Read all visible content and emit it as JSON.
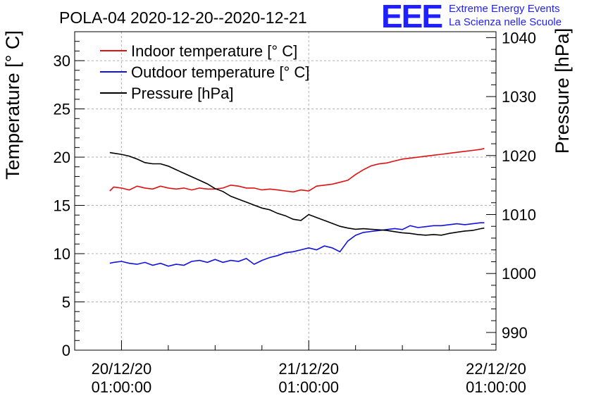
{
  "chart_data": {
    "type": "line",
    "title": "POLA-04 2020-12-20--2020-12-21",
    "ylabel_left": "Temperature [° C]",
    "ylabel_right": "Pressure [hPa]",
    "xlabel": "",
    "x_ticks": [
      {
        "date": "20/12/20",
        "time": "01:00:00",
        "hours": 0
      },
      {
        "date": "21/12/20",
        "time": "01:00:00",
        "hours": 24
      },
      {
        "date": "22/12/20",
        "time": "01:00:00",
        "hours": 48
      }
    ],
    "x_range_hours": [
      -6,
      48
    ],
    "ylim_left": [
      0,
      33
    ],
    "yticks_left": [
      0,
      5,
      10,
      15,
      20,
      25,
      30
    ],
    "ylim_right": [
      987,
      1041
    ],
    "yticks_right": [
      990,
      1000,
      1010,
      1020,
      1030,
      1040
    ],
    "grid": true,
    "legend_position": "top-left",
    "series": [
      {
        "name": "Indoor temperature [° C]",
        "axis": "left",
        "color": "#e01010",
        "x_hours": [
          -1.5,
          -1,
          0,
          1,
          2,
          3,
          4,
          5,
          6,
          7,
          8,
          9,
          10,
          11,
          12,
          13,
          14,
          15,
          16,
          17,
          18,
          19,
          20,
          21,
          22,
          23,
          24,
          25,
          26,
          27,
          28,
          29,
          30,
          31,
          32,
          33,
          34,
          35,
          36,
          37,
          38,
          39,
          40,
          41,
          42,
          43,
          44,
          45,
          46,
          46.5
        ],
        "values": [
          16.5,
          16.9,
          16.8,
          16.6,
          17.0,
          16.8,
          16.7,
          17.0,
          16.8,
          16.7,
          16.8,
          16.6,
          16.8,
          16.7,
          16.7,
          16.8,
          17.1,
          17.0,
          16.8,
          16.8,
          16.6,
          16.7,
          16.6,
          16.5,
          16.4,
          16.6,
          16.5,
          17.0,
          17.1,
          17.2,
          17.4,
          17.6,
          18.2,
          18.7,
          19.1,
          19.3,
          19.4,
          19.6,
          19.8,
          19.9,
          20.0,
          20.1,
          20.2,
          20.3,
          20.4,
          20.5,
          20.6,
          20.7,
          20.8,
          20.9
        ]
      },
      {
        "name": "Outdoor temperature [° C]",
        "axis": "left",
        "color": "#1010e0",
        "x_hours": [
          -1.5,
          -1,
          0,
          1,
          2,
          3,
          4,
          5,
          6,
          7,
          8,
          9,
          10,
          11,
          12,
          13,
          14,
          15,
          16,
          17,
          18,
          19,
          20,
          21,
          22,
          23,
          24,
          25,
          26,
          27,
          28,
          29,
          30,
          31,
          32,
          33,
          34,
          35,
          36,
          37,
          38,
          39,
          40,
          41,
          42,
          43,
          44,
          45,
          46,
          46.5
        ],
        "values": [
          9.0,
          9.1,
          9.2,
          9.0,
          8.9,
          9.1,
          8.8,
          9.0,
          8.7,
          8.9,
          8.8,
          9.2,
          9.3,
          9.1,
          9.4,
          9.1,
          9.3,
          9.2,
          9.5,
          8.9,
          9.3,
          9.6,
          9.8,
          10.1,
          10.2,
          10.4,
          10.6,
          10.4,
          10.8,
          10.6,
          10.2,
          11.3,
          11.9,
          12.2,
          12.3,
          12.4,
          12.5,
          12.6,
          12.5,
          12.9,
          12.7,
          12.8,
          12.9,
          12.9,
          13.0,
          13.1,
          13.0,
          13.1,
          13.2,
          13.2
        ]
      },
      {
        "name": "Pressure [hPa]",
        "axis": "right",
        "color": "#000000",
        "x_hours": [
          -1.5,
          -1,
          0,
          1,
          2,
          3,
          4,
          5,
          6,
          7,
          8,
          9,
          10,
          11,
          12,
          13,
          14,
          15,
          16,
          17,
          18,
          19,
          20,
          21,
          22,
          23,
          24,
          25,
          26,
          27,
          28,
          29,
          30,
          31,
          32,
          33,
          34,
          35,
          36,
          37,
          38,
          39,
          40,
          41,
          42,
          43,
          44,
          45,
          46,
          46.5
        ],
        "values": [
          1020.5,
          1020.4,
          1020.2,
          1019.9,
          1019.4,
          1018.8,
          1018.6,
          1018.6,
          1018.2,
          1017.6,
          1017.0,
          1016.4,
          1015.8,
          1015.2,
          1014.4,
          1013.9,
          1013.1,
          1012.6,
          1012.1,
          1011.6,
          1011.1,
          1010.8,
          1010.2,
          1009.8,
          1009.2,
          1009.0,
          1010.0,
          1009.5,
          1009.0,
          1008.5,
          1008.0,
          1007.7,
          1007.5,
          1007.6,
          1007.5,
          1007.4,
          1007.3,
          1007.1,
          1006.9,
          1006.8,
          1006.6,
          1006.5,
          1006.6,
          1006.5,
          1006.8,
          1007.0,
          1007.2,
          1007.3,
          1007.6,
          1007.7
        ]
      }
    ]
  },
  "logo": {
    "mark": "EEE",
    "line1": "Extreme Energy Events",
    "line2": "La Scienza nelle Scuole",
    "color": "#1f1fff"
  }
}
